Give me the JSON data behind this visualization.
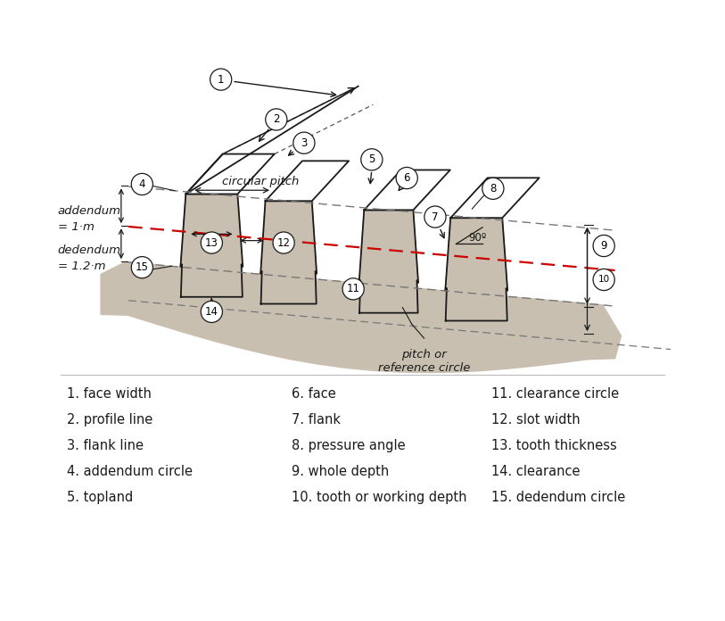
{
  "background_color": "#ffffff",
  "gear_fill_color": "#c8bfb0",
  "gear_stroke_color": "#1a1a1a",
  "line_color": "#1a1a1a",
  "red_dashed_color": "#cc0000",
  "circle_label_bg": "#ffffff",
  "legend_fontsize": 10.5,
  "legend_col1": [
    "1. face width",
    "2. profile line",
    "3. flank line",
    "4. addendum circle",
    "5. topland"
  ],
  "legend_col2": [
    "6. face",
    "7. flank",
    "8. pressure angle",
    "9. whole depth",
    "10. tooth or working depth"
  ],
  "legend_col3": [
    "11. clearance circle",
    "12. slot width",
    "13. tooth thickness",
    "14. clearance",
    "15. dedendum circle"
  ],
  "addendum_text1": "addendum",
  "addendum_text2": "= 1·m",
  "dedendum_text1": "dedendum",
  "dedendum_text2": "= 1.2·m",
  "circular_pitch_text": "circular pitch",
  "pitch_circle_text": "pitch or\nreference circle",
  "pressure_angle_text": "90º"
}
